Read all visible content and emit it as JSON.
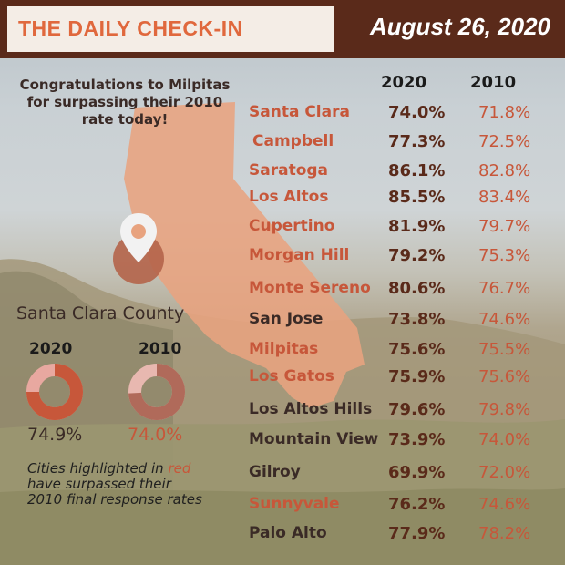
{
  "header": {
    "title": "THE DAILY CHECK-IN",
    "date": "August 26, 2020"
  },
  "congrats": {
    "lines": [
      "Congratulations to Milpitas",
      "for surpassing their 2010",
      "rate today!"
    ]
  },
  "table": {
    "col_2020": "2020",
    "col_2010": "2010",
    "rows": [
      {
        "city": "Santa Clara",
        "v2020": "74.0%",
        "v2010": "71.8%",
        "highlight": true
      },
      {
        "city": "Campbell",
        "v2020": "77.3%",
        "v2010": "72.5%",
        "highlight": true
      },
      {
        "city": "Saratoga",
        "v2020": "86.1%",
        "v2010": "82.8%",
        "highlight": true
      },
      {
        "city": "Los Altos",
        "v2020": "85.5%",
        "v2010": "83.4%",
        "highlight": true
      },
      {
        "city": "Cupertino",
        "v2020": "81.9%",
        "v2010": "79.7%",
        "highlight": true
      },
      {
        "city": "Morgan Hill",
        "v2020": "79.2%",
        "v2010": "75.3%",
        "highlight": true
      },
      {
        "city": "Monte Sereno",
        "v2020": "80.6%",
        "v2010": "76.7%",
        "highlight": true
      },
      {
        "city": "San Jose",
        "v2020": "73.8%",
        "v2010": "74.6%",
        "highlight": false
      },
      {
        "city": "Milpitas",
        "v2020": "75.6%",
        "v2010": "75.5%",
        "highlight": true
      },
      {
        "city": "Los Gatos",
        "v2020": "75.9%",
        "v2010": "75.6%",
        "highlight": true
      },
      {
        "city": "Los Altos Hills",
        "v2020": "79.6%",
        "v2010": "79.8%",
        "highlight": false
      },
      {
        "city": "Mountain View",
        "v2020": "73.9%",
        "v2010": "74.0%",
        "highlight": false
      },
      {
        "city": "Gilroy",
        "v2020": "69.9%",
        "v2010": "72.0%",
        "highlight": false
      },
      {
        "city": "Sunnyvale",
        "v2020": "76.2%",
        "v2010": "74.6%",
        "highlight": true
      },
      {
        "city": "Palo Alto",
        "v2020": "77.9%",
        "v2010": "78.2%",
        "highlight": false
      }
    ]
  },
  "county": {
    "title": "Santa Clara County",
    "label_2020": "2020",
    "label_2010": "2010",
    "value_2020": "74.9%",
    "value_2010": "74.0%",
    "fraction_2020": 0.749,
    "fraction_2010": 0.74
  },
  "note": {
    "before": "Cities highlighted in",
    "red_word": "red",
    "after": "have surpassed their 2010 final response rates"
  },
  "colors": {
    "highlight": "#c7573a",
    "normal": "#3a2a26",
    "banner": "#5a2a1a",
    "map": "#e8a37f"
  },
  "icons": {
    "map_shape": "california-map-icon",
    "pin": "location-pin-icon"
  }
}
